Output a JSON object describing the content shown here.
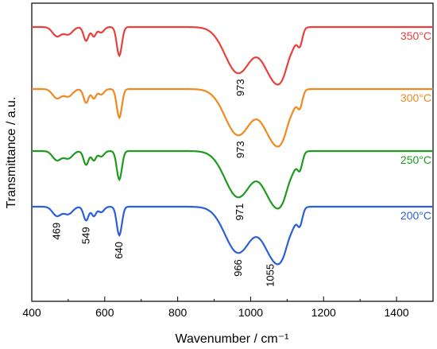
{
  "chart_data": {
    "type": "line",
    "xlabel": "Wavenumber / cm⁻¹",
    "ylabel": "Transmittance / a.u.",
    "xlim": [
      400,
      1500
    ],
    "xticks": [
      "400",
      "600",
      "800",
      "1000",
      "1200",
      "1400"
    ],
    "xtick_values": [
      400,
      600,
      800,
      1000,
      1200,
      1400
    ],
    "grid": false,
    "legend": "labels at right end of each curve",
    "series": [
      {
        "name": "350°C",
        "color": "#e8413c",
        "offset": 3,
        "label": "350°C",
        "peaks": [
          {
            "x": 973,
            "label": "973"
          }
        ]
      },
      {
        "name": "300°C",
        "color": "#f0891f",
        "offset": 2,
        "label": "300°C",
        "peaks": [
          {
            "x": 973,
            "label": "973"
          }
        ]
      },
      {
        "name": "250°C",
        "color": "#1e9b1e",
        "offset": 1,
        "label": "250°C",
        "peaks": [
          {
            "x": 971,
            "label": "971"
          }
        ]
      },
      {
        "name": "200°C",
        "color": "#2b5fd9",
        "offset": 0,
        "label": "200°C",
        "peaks": [
          {
            "x": 469,
            "label": "469"
          },
          {
            "x": 549,
            "label": "549"
          },
          {
            "x": 640,
            "label": "640"
          },
          {
            "x": 966,
            "label": "966"
          },
          {
            "x": 1055,
            "label": "1055"
          }
        ]
      }
    ]
  }
}
